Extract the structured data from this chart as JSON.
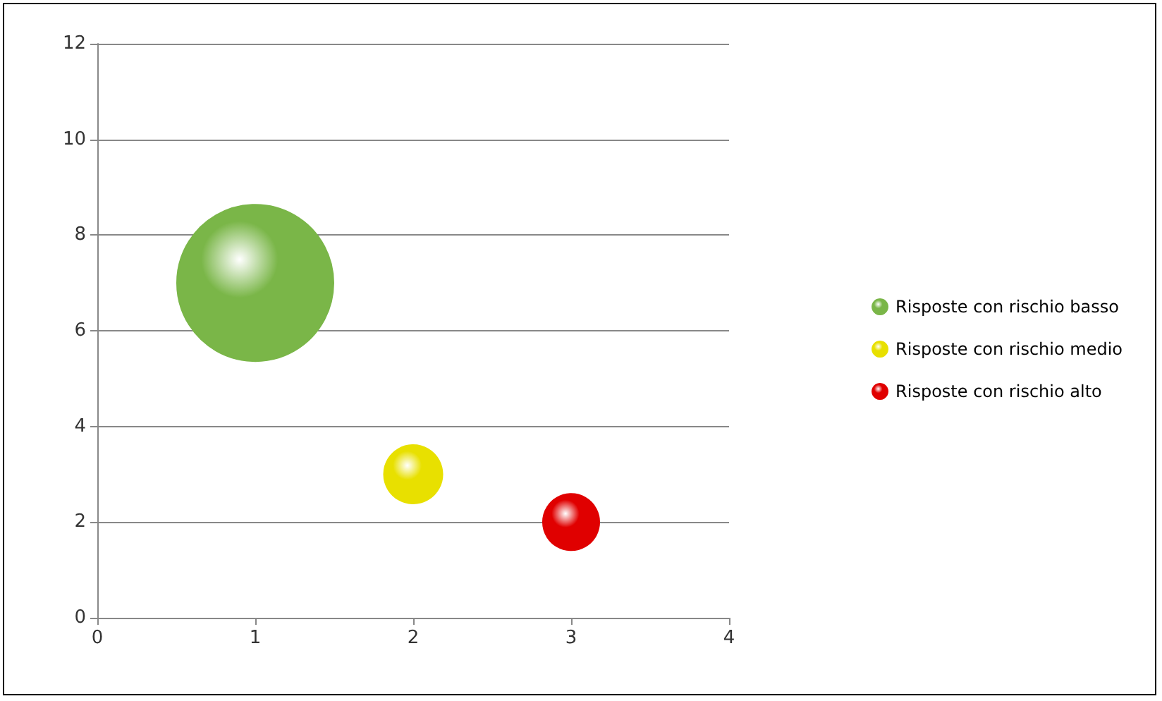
{
  "chart_data": {
    "type": "bubble",
    "series": [
      {
        "name": "Risposte con rischio basso",
        "color": "#7ab648",
        "x": [
          1
        ],
        "values": [
          7
        ],
        "sizes": [
          1
        ]
      },
      {
        "name": "Risposte con rischio medio",
        "color": "#e8e000",
        "x": [
          2
        ],
        "values": [
          3
        ],
        "sizes": [
          0.14
        ]
      },
      {
        "name": "Risposte con rischio alto",
        "color": "#e00000",
        "x": [
          3
        ],
        "values": [
          2
        ],
        "sizes": [
          0.13
        ]
      }
    ],
    "xlim": [
      0,
      4
    ],
    "xticks": [
      0,
      1,
      2,
      3,
      4
    ],
    "ylim": [
      0,
      12
    ],
    "yticks": [
      0,
      2,
      4,
      6,
      8,
      10,
      12
    ],
    "grid": "y",
    "legend": "right",
    "marker": "circle"
  }
}
